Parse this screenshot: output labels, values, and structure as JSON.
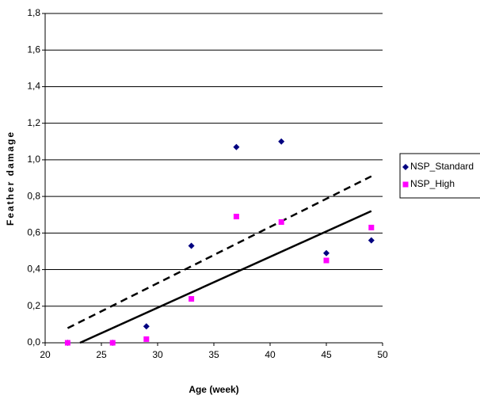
{
  "chart_data": {
    "type": "scatter",
    "xlabel": "Age (week)",
    "ylabel": "Feather damage",
    "xlim": [
      20,
      50
    ],
    "xticks": [
      20,
      25,
      30,
      35,
      40,
      45,
      50
    ],
    "ylim": [
      0,
      1.8
    ],
    "yticks": [
      {
        "value": 0,
        "label": "0,0"
      },
      {
        "value": 0.2,
        "label": "0,2"
      },
      {
        "value": 0.4,
        "label": "0,4"
      },
      {
        "value": 0.6,
        "label": "0,6"
      },
      {
        "value": 0.8,
        "label": "0,8"
      },
      {
        "value": 1.0,
        "label": "1,0"
      },
      {
        "value": 1.2,
        "label": "1,2"
      },
      {
        "value": 1.4,
        "label": "1,4"
      },
      {
        "value": 1.6,
        "label": "1,6"
      },
      {
        "value": 1.8,
        "label": "1,8"
      }
    ],
    "grid": true,
    "legend": "right",
    "series": [
      {
        "name": "NSP_Standard",
        "color": "#000080",
        "marker": "diamond",
        "x": [
          22,
          26,
          29,
          33,
          37,
          41,
          45,
          49
        ],
        "values": [
          0.0,
          0.0,
          0.09,
          0.53,
          1.07,
          1.1,
          0.49,
          0.56
        ],
        "trendline": {
          "x": [
            22,
            49
          ],
          "values": [
            0.08,
            0.91
          ],
          "dashed": true
        }
      },
      {
        "name": "NSP_High",
        "color": "#ff00ff",
        "marker": "square",
        "x": [
          22,
          26,
          29,
          33,
          37,
          41,
          45,
          49
        ],
        "values": [
          0.0,
          0.0,
          0.02,
          0.24,
          0.69,
          0.66,
          0.45,
          0.63
        ],
        "trendline": {
          "x": [
            23.1,
            49
          ],
          "values": [
            0,
            0.72
          ],
          "dashed": false
        }
      }
    ]
  }
}
